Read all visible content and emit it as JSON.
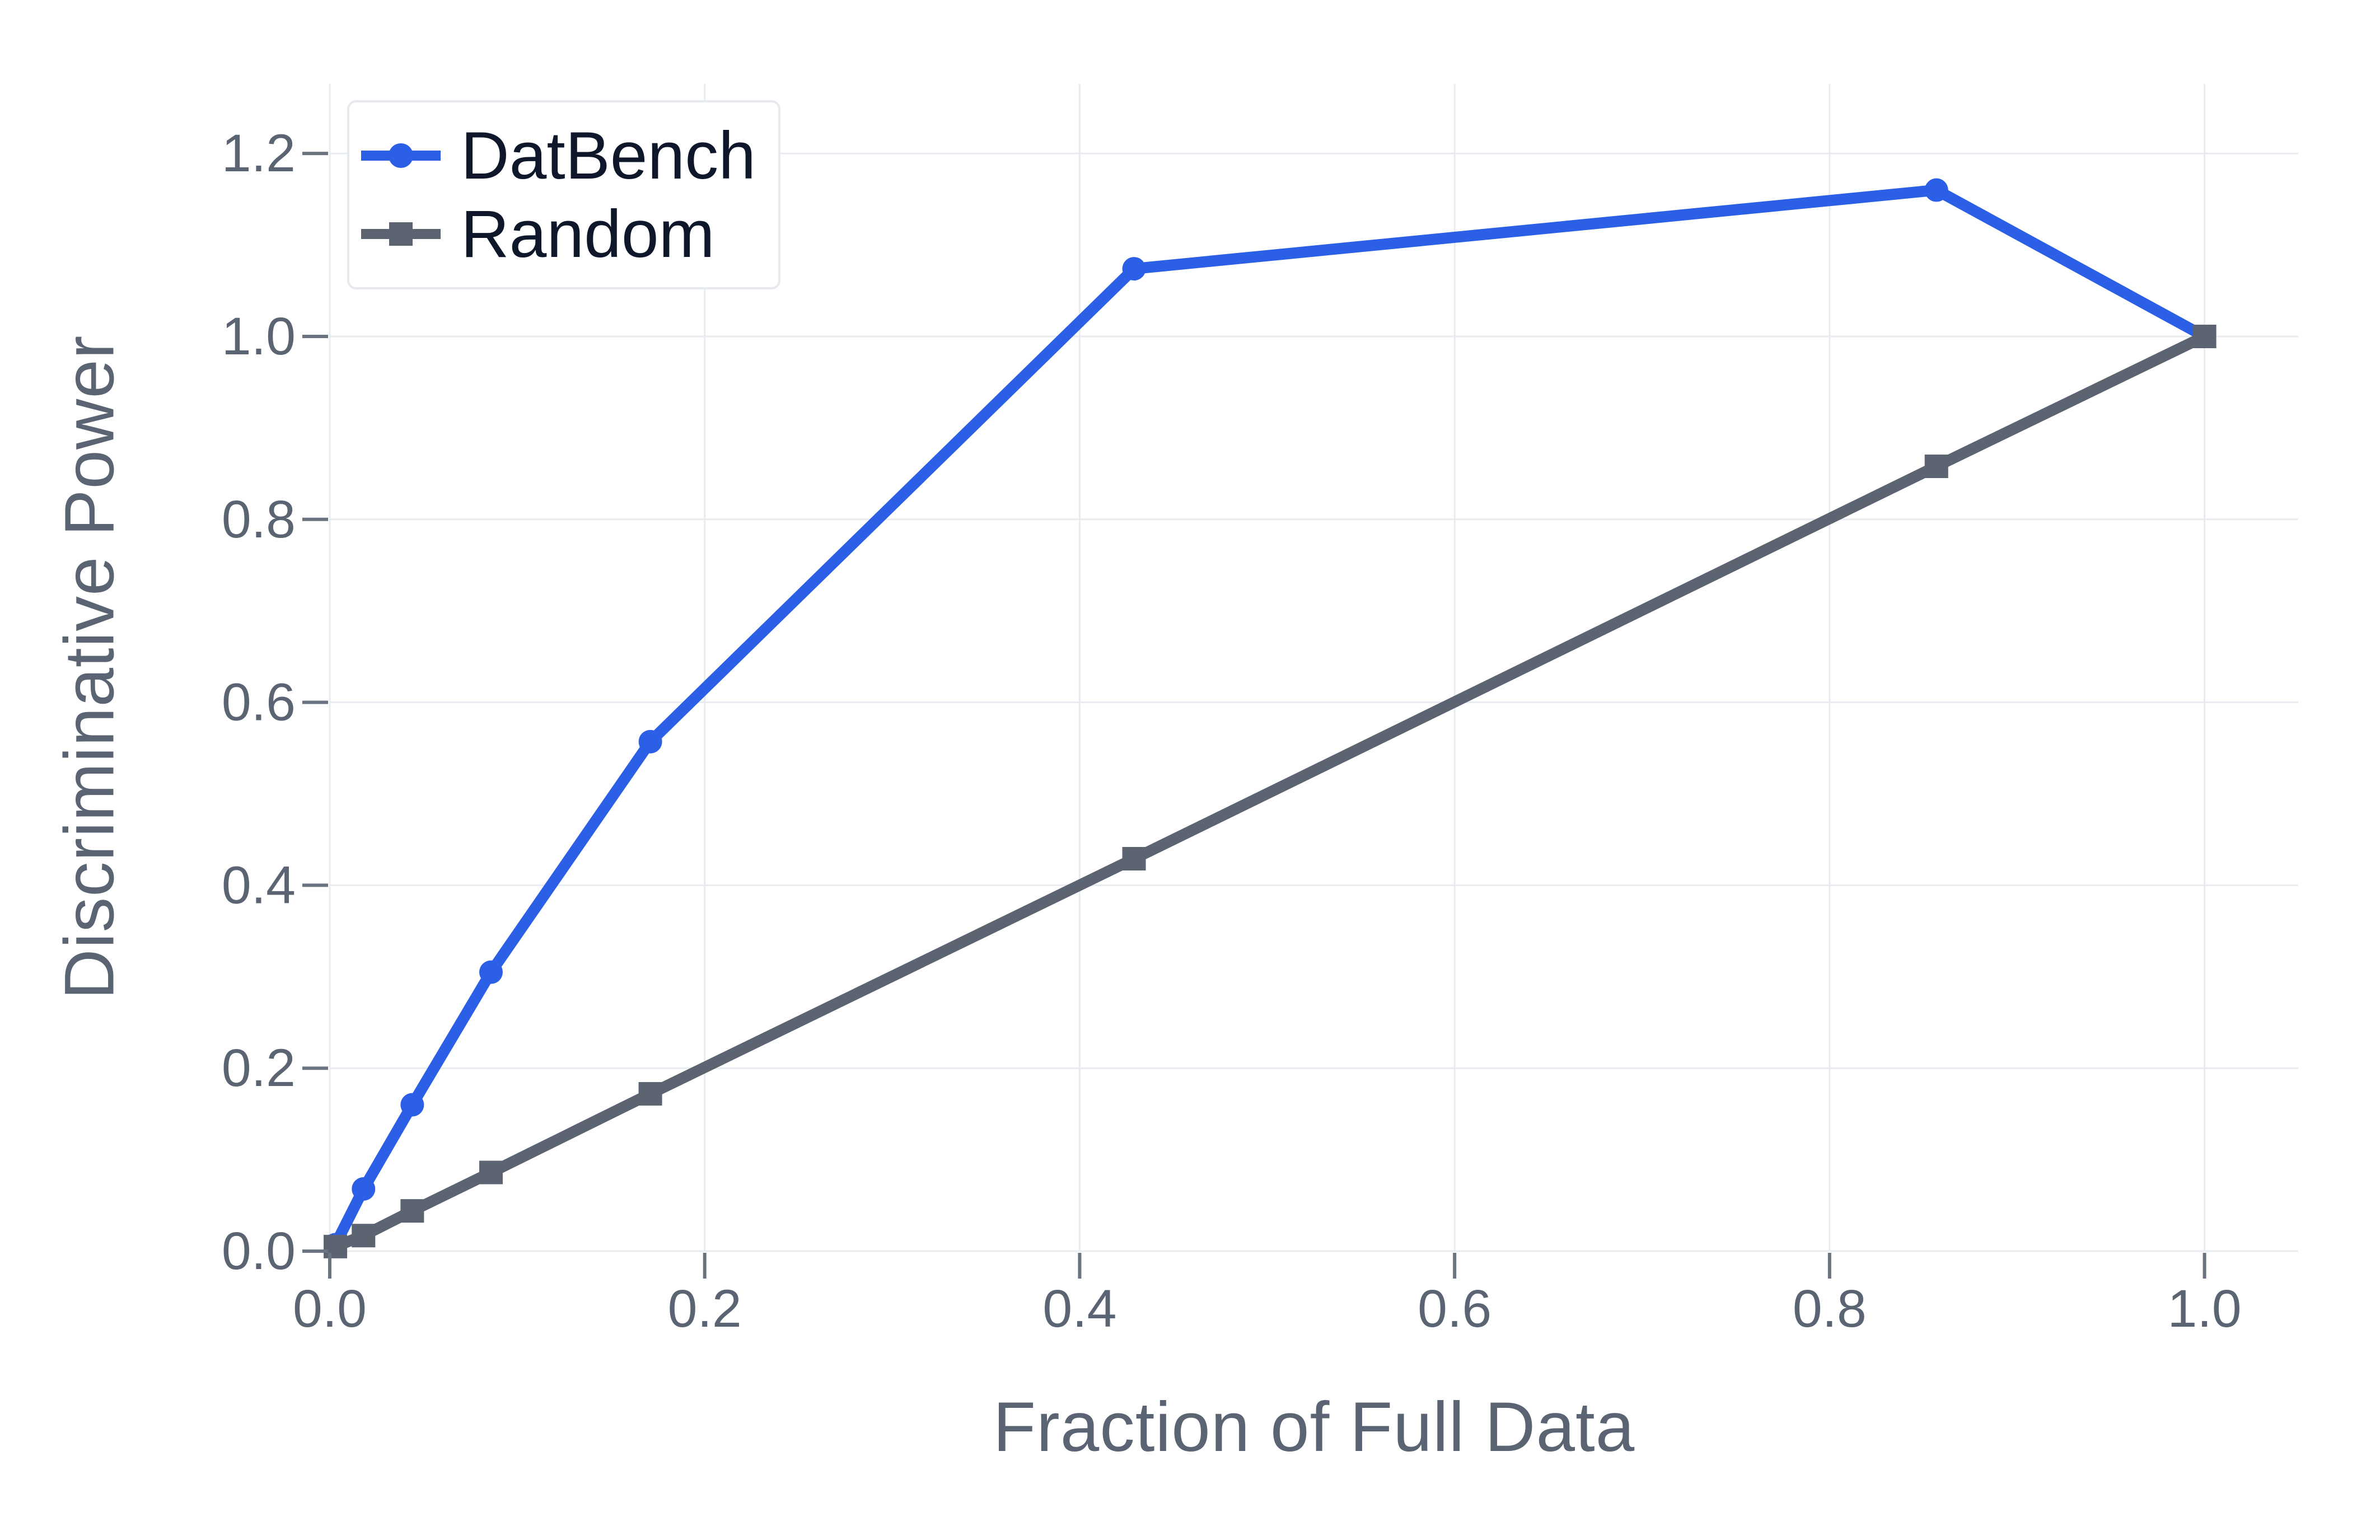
{
  "figure": {
    "background_color": "#ffffff"
  },
  "chart_data": {
    "type": "line",
    "title": "",
    "xlabel": "Fraction of Full Data",
    "ylabel": "Discriminative Power",
    "xlim": [
      0,
      1.05
    ],
    "ylim": [
      0,
      1.276
    ],
    "grid": true,
    "legend_position": "upper-left",
    "x_ticks": [
      0.0,
      0.2,
      0.4,
      0.6,
      0.8,
      1.0
    ],
    "x_tick_labels": [
      "0.0",
      "0.2",
      "0.4",
      "0.6",
      "0.8",
      "1.0"
    ],
    "y_ticks": [
      0.0,
      0.2,
      0.4,
      0.6,
      0.8,
      1.0,
      1.2
    ],
    "y_tick_labels": [
      "0.0",
      "0.2",
      "0.4",
      "0.6",
      "0.8",
      "1.0",
      "1.2"
    ],
    "x": [
      0.003,
      0.018,
      0.044,
      0.086,
      0.171,
      0.429,
      0.857,
      1.0
    ],
    "series": [
      {
        "name": "DatBench",
        "color": "#2b5fe6",
        "marker": "circle",
        "values": [
          0.007,
          0.068,
          0.16,
          0.305,
          0.557,
          1.074,
          1.16,
          1.0
        ]
      },
      {
        "name": "Random",
        "color": "#5b6470",
        "marker": "square",
        "values": [
          0.005,
          0.017,
          0.044,
          0.086,
          0.172,
          0.429,
          0.858,
          1.0
        ]
      }
    ],
    "colors": {
      "grid": "#e8ebef",
      "tick_mark": "#6a7380",
      "tick_label": "#5a6472",
      "axis_label": "#5a6472",
      "legend_text": "#0f172a",
      "legend_border": "#e6e9ee",
      "background": "#ffffff"
    }
  }
}
